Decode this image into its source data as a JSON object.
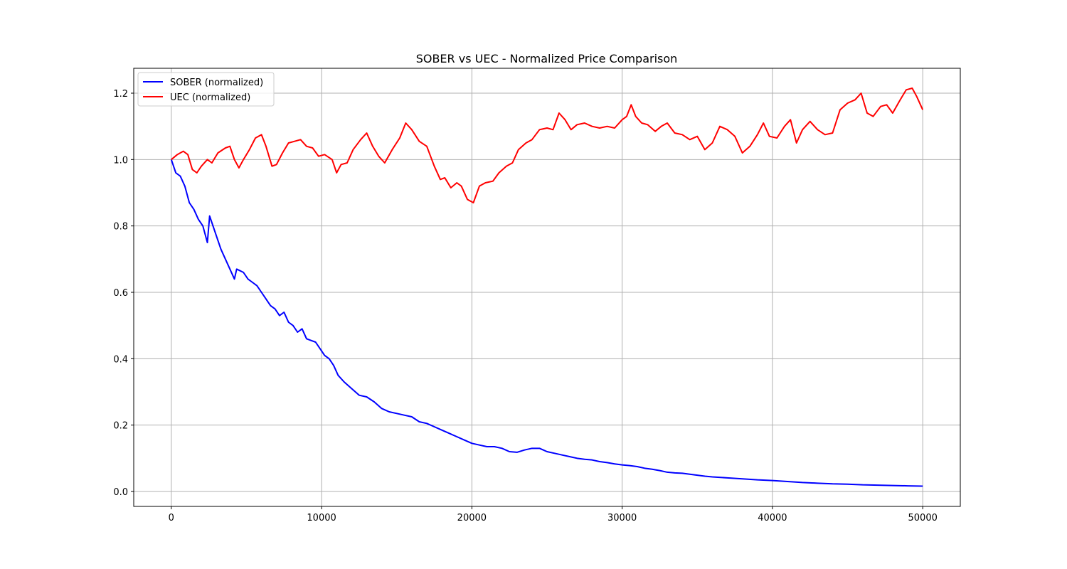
{
  "chart_data": {
    "type": "line",
    "title": "SOBER vs UEC - Normalized Price Comparison",
    "xlabel": "",
    "ylabel": "",
    "xlim": [
      -2500,
      52500
    ],
    "ylim": [
      -0.045,
      1.275
    ],
    "x_ticks": [
      0,
      10000,
      20000,
      30000,
      40000,
      50000
    ],
    "x_tick_labels": [
      "0",
      "10000",
      "20000",
      "30000",
      "40000",
      "50000"
    ],
    "y_ticks": [
      0.0,
      0.2,
      0.4,
      0.6,
      0.8,
      1.0,
      1.2
    ],
    "y_tick_labels": [
      "0.0",
      "0.2",
      "0.4",
      "0.6",
      "0.8",
      "1.0",
      "1.2"
    ],
    "grid": true,
    "legend_position": "top-left",
    "series": [
      {
        "name": "SOBER (normalized)",
        "color": "#0000ff",
        "points": [
          [
            0,
            1.0
          ],
          [
            300,
            0.96
          ],
          [
            600,
            0.95
          ],
          [
            900,
            0.92
          ],
          [
            1200,
            0.87
          ],
          [
            1500,
            0.85
          ],
          [
            1800,
            0.82
          ],
          [
            2100,
            0.8
          ],
          [
            2400,
            0.75
          ],
          [
            2550,
            0.83
          ],
          [
            2700,
            0.81
          ],
          [
            3000,
            0.77
          ],
          [
            3300,
            0.73
          ],
          [
            3600,
            0.7
          ],
          [
            3900,
            0.67
          ],
          [
            4200,
            0.64
          ],
          [
            4350,
            0.67
          ],
          [
            4800,
            0.66
          ],
          [
            5100,
            0.64
          ],
          [
            5400,
            0.63
          ],
          [
            5700,
            0.62
          ],
          [
            6000,
            0.6
          ],
          [
            6300,
            0.58
          ],
          [
            6600,
            0.56
          ],
          [
            6900,
            0.55
          ],
          [
            7200,
            0.53
          ],
          [
            7500,
            0.54
          ],
          [
            7800,
            0.51
          ],
          [
            8100,
            0.5
          ],
          [
            8400,
            0.48
          ],
          [
            8700,
            0.49
          ],
          [
            9000,
            0.46
          ],
          [
            9300,
            0.455
          ],
          [
            9600,
            0.45
          ],
          [
            9900,
            0.43
          ],
          [
            10200,
            0.41
          ],
          [
            10500,
            0.4
          ],
          [
            10800,
            0.38
          ],
          [
            11100,
            0.35
          ],
          [
            11500,
            0.33
          ],
          [
            12000,
            0.31
          ],
          [
            12500,
            0.29
          ],
          [
            13000,
            0.285
          ],
          [
            13500,
            0.27
          ],
          [
            14000,
            0.25
          ],
          [
            14500,
            0.24
          ],
          [
            15000,
            0.235
          ],
          [
            15500,
            0.23
          ],
          [
            16000,
            0.225
          ],
          [
            16500,
            0.21
          ],
          [
            17000,
            0.205
          ],
          [
            17500,
            0.195
          ],
          [
            18000,
            0.185
          ],
          [
            18500,
            0.175
          ],
          [
            19000,
            0.165
          ],
          [
            19500,
            0.155
          ],
          [
            20000,
            0.145
          ],
          [
            20500,
            0.14
          ],
          [
            21000,
            0.135
          ],
          [
            21500,
            0.135
          ],
          [
            22000,
            0.13
          ],
          [
            22500,
            0.12
          ],
          [
            23000,
            0.118
          ],
          [
            23500,
            0.125
          ],
          [
            24000,
            0.13
          ],
          [
            24500,
            0.13
          ],
          [
            25000,
            0.12
          ],
          [
            25500,
            0.115
          ],
          [
            26000,
            0.11
          ],
          [
            26500,
            0.105
          ],
          [
            27000,
            0.1
          ],
          [
            27500,
            0.097
          ],
          [
            28000,
            0.095
          ],
          [
            28500,
            0.09
          ],
          [
            29000,
            0.087
          ],
          [
            29500,
            0.083
          ],
          [
            30000,
            0.08
          ],
          [
            30500,
            0.078
          ],
          [
            31000,
            0.075
          ],
          [
            31500,
            0.07
          ],
          [
            32000,
            0.067
          ],
          [
            32500,
            0.063
          ],
          [
            33000,
            0.058
          ],
          [
            33500,
            0.056
          ],
          [
            34000,
            0.055
          ],
          [
            34500,
            0.052
          ],
          [
            35000,
            0.049
          ],
          [
            35500,
            0.046
          ],
          [
            36000,
            0.044
          ],
          [
            37000,
            0.041
          ],
          [
            38000,
            0.038
          ],
          [
            39000,
            0.035
          ],
          [
            40000,
            0.033
          ],
          [
            41000,
            0.03
          ],
          [
            42000,
            0.027
          ],
          [
            43000,
            0.025
          ],
          [
            44000,
            0.023
          ],
          [
            45000,
            0.022
          ],
          [
            46000,
            0.02
          ],
          [
            47000,
            0.019
          ],
          [
            48000,
            0.018
          ],
          [
            49000,
            0.017
          ],
          [
            50000,
            0.016
          ]
        ]
      },
      {
        "name": "UEC (normalized)",
        "color": "#ff0000",
        "points": [
          [
            0,
            1.0
          ],
          [
            400,
            1.015
          ],
          [
            800,
            1.025
          ],
          [
            1100,
            1.015
          ],
          [
            1400,
            0.97
          ],
          [
            1700,
            0.96
          ],
          [
            2000,
            0.98
          ],
          [
            2400,
            1.0
          ],
          [
            2700,
            0.99
          ],
          [
            3100,
            1.02
          ],
          [
            3600,
            1.035
          ],
          [
            3900,
            1.04
          ],
          [
            4200,
            1.0
          ],
          [
            4500,
            0.975
          ],
          [
            4800,
            1.0
          ],
          [
            5200,
            1.03
          ],
          [
            5600,
            1.065
          ],
          [
            6000,
            1.075
          ],
          [
            6300,
            1.04
          ],
          [
            6700,
            0.98
          ],
          [
            7000,
            0.985
          ],
          [
            7400,
            1.02
          ],
          [
            7800,
            1.05
          ],
          [
            8200,
            1.055
          ],
          [
            8600,
            1.06
          ],
          [
            9000,
            1.04
          ],
          [
            9400,
            1.035
          ],
          [
            9800,
            1.01
          ],
          [
            10200,
            1.015
          ],
          [
            10700,
            1.0
          ],
          [
            11000,
            0.96
          ],
          [
            11300,
            0.985
          ],
          [
            11700,
            0.99
          ],
          [
            12100,
            1.03
          ],
          [
            12600,
            1.06
          ],
          [
            13000,
            1.08
          ],
          [
            13400,
            1.04
          ],
          [
            13800,
            1.01
          ],
          [
            14200,
            0.99
          ],
          [
            14700,
            1.03
          ],
          [
            15200,
            1.065
          ],
          [
            15600,
            1.11
          ],
          [
            16000,
            1.09
          ],
          [
            16500,
            1.055
          ],
          [
            17000,
            1.04
          ],
          [
            17500,
            0.98
          ],
          [
            17900,
            0.94
          ],
          [
            18200,
            0.945
          ],
          [
            18600,
            0.915
          ],
          [
            19000,
            0.93
          ],
          [
            19300,
            0.92
          ],
          [
            19700,
            0.88
          ],
          [
            20100,
            0.87
          ],
          [
            20500,
            0.92
          ],
          [
            20900,
            0.93
          ],
          [
            21400,
            0.935
          ],
          [
            21800,
            0.96
          ],
          [
            22300,
            0.98
          ],
          [
            22700,
            0.99
          ],
          [
            23100,
            1.03
          ],
          [
            23600,
            1.05
          ],
          [
            24000,
            1.06
          ],
          [
            24500,
            1.09
          ],
          [
            25000,
            1.095
          ],
          [
            25400,
            1.09
          ],
          [
            25800,
            1.14
          ],
          [
            26200,
            1.12
          ],
          [
            26600,
            1.09
          ],
          [
            27000,
            1.105
          ],
          [
            27500,
            1.11
          ],
          [
            28000,
            1.1
          ],
          [
            28500,
            1.095
          ],
          [
            29000,
            1.1
          ],
          [
            29500,
            1.095
          ],
          [
            30000,
            1.12
          ],
          [
            30300,
            1.13
          ],
          [
            30600,
            1.165
          ],
          [
            30900,
            1.13
          ],
          [
            31300,
            1.11
          ],
          [
            31700,
            1.105
          ],
          [
            32200,
            1.085
          ],
          [
            32600,
            1.1
          ],
          [
            33000,
            1.11
          ],
          [
            33500,
            1.08
          ],
          [
            34000,
            1.075
          ],
          [
            34500,
            1.06
          ],
          [
            35000,
            1.07
          ],
          [
            35500,
            1.03
          ],
          [
            36000,
            1.05
          ],
          [
            36500,
            1.1
          ],
          [
            37000,
            1.09
          ],
          [
            37500,
            1.07
          ],
          [
            38000,
            1.02
          ],
          [
            38500,
            1.04
          ],
          [
            39000,
            1.075
          ],
          [
            39400,
            1.11
          ],
          [
            39800,
            1.07
          ],
          [
            40300,
            1.065
          ],
          [
            40800,
            1.1
          ],
          [
            41200,
            1.12
          ],
          [
            41600,
            1.05
          ],
          [
            42000,
            1.09
          ],
          [
            42500,
            1.115
          ],
          [
            43000,
            1.09
          ],
          [
            43500,
            1.075
          ],
          [
            44000,
            1.08
          ],
          [
            44500,
            1.15
          ],
          [
            45000,
            1.17
          ],
          [
            45500,
            1.18
          ],
          [
            45900,
            1.2
          ],
          [
            46300,
            1.14
          ],
          [
            46700,
            1.13
          ],
          [
            47200,
            1.16
          ],
          [
            47600,
            1.165
          ],
          [
            48000,
            1.14
          ],
          [
            48500,
            1.18
          ],
          [
            48900,
            1.21
          ],
          [
            49300,
            1.215
          ],
          [
            49600,
            1.19
          ],
          [
            50000,
            1.15
          ]
        ]
      }
    ]
  }
}
